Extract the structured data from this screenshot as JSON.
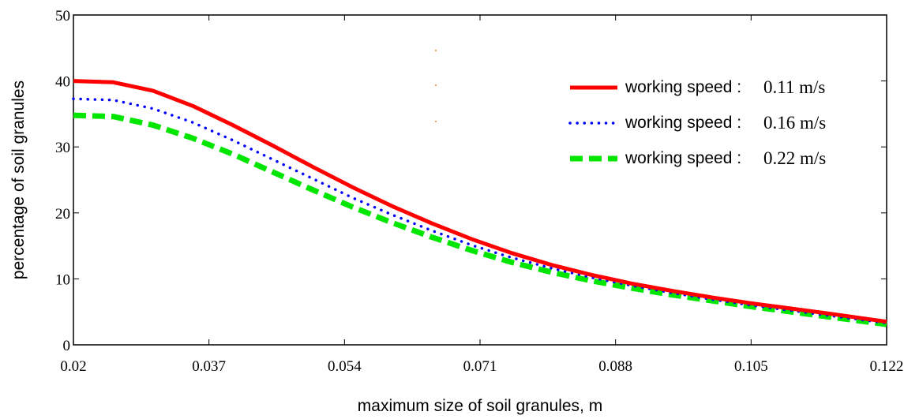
{
  "chart_data": {
    "type": "line",
    "title": "",
    "xlabel": "maximum size of soil granules, m",
    "ylabel": "percentage of soil granules",
    "xlim": [
      0.02,
      0.122
    ],
    "ylim": [
      0,
      50
    ],
    "x_ticks": [
      "0.02",
      "0.037",
      "0.054",
      "0.071",
      "0.088",
      "0.105",
      "0.122"
    ],
    "y_ticks": [
      "0",
      "10",
      "20",
      "30",
      "40",
      "50"
    ],
    "grid": false,
    "legend_position": "top-right",
    "x": [
      0.02,
      0.025,
      0.03,
      0.035,
      0.04,
      0.045,
      0.05,
      0.055,
      0.06,
      0.065,
      0.07,
      0.075,
      0.08,
      0.085,
      0.09,
      0.095,
      0.1,
      0.105,
      0.11,
      0.115,
      0.122
    ],
    "series": [
      {
        "name": "working speed : 0.11 m/s",
        "legend_text": "working speed :",
        "legend_value": "0.11 m/s",
        "color": "#ff0000",
        "style": "solid",
        "values": [
          40.0,
          39.8,
          38.5,
          36.2,
          33.3,
          30.2,
          27.0,
          23.9,
          21.0,
          18.4,
          16.0,
          13.9,
          12.1,
          10.6,
          9.3,
          8.2,
          7.2,
          6.3,
          5.5,
          4.7,
          3.5
        ]
      },
      {
        "name": "working speed : 0.16 m/s",
        "legend_text": "working speed :",
        "legend_value": "0.16 m/s",
        "color": "#0000ff",
        "style": "dotted",
        "values": [
          37.3,
          37.1,
          35.8,
          33.7,
          31.0,
          28.1,
          25.2,
          22.3,
          19.7,
          17.3,
          15.1,
          13.2,
          11.6,
          10.2,
          9.0,
          7.9,
          6.9,
          6.0,
          5.2,
          4.4,
          3.3
        ]
      },
      {
        "name": "working speed : 0.22 m/s",
        "legend_text": "working speed :",
        "legend_value": "0.22 m/s",
        "color": "#00e600",
        "style": "dashed",
        "values": [
          34.8,
          34.6,
          33.3,
          31.3,
          28.9,
          26.2,
          23.5,
          20.9,
          18.5,
          16.3,
          14.3,
          12.5,
          11.0,
          9.7,
          8.6,
          7.6,
          6.7,
          5.8,
          5.0,
          4.2,
          3.1
        ]
      }
    ]
  }
}
